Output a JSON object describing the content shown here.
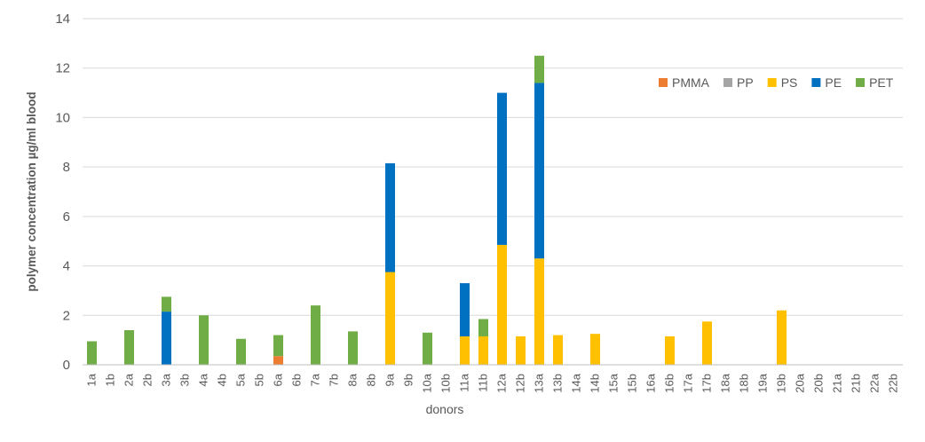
{
  "chart_data": {
    "type": "bar",
    "stacked": true,
    "xlabel": "donors",
    "ylabel": "polymer concentration µg/ml blood",
    "ylim": [
      0,
      14
    ],
    "yticks": [
      0,
      2,
      4,
      6,
      8,
      10,
      12,
      14
    ],
    "grid": true,
    "legend_position": "top-right",
    "categories": [
      "1a",
      "1b",
      "2a",
      "2b",
      "3a",
      "3b",
      "4a",
      "4b",
      "5a",
      "5b",
      "6a",
      "6b",
      "7a",
      "7b",
      "8a",
      "8b",
      "9a",
      "9b",
      "10a",
      "10b",
      "11a",
      "11b",
      "12a",
      "12b",
      "13a",
      "13b",
      "14a",
      "14b",
      "15a",
      "15b",
      "16a",
      "16b",
      "17a",
      "17b",
      "18a",
      "18b",
      "19a",
      "19b",
      "20a",
      "20b",
      "21a",
      "21b",
      "22a",
      "22b"
    ],
    "series": [
      {
        "name": "PMMA",
        "color": "#ED7D31",
        "values": [
          0,
          0,
          0,
          0,
          0,
          0,
          0,
          0,
          0,
          0,
          0.35,
          0,
          0,
          0,
          0,
          0,
          0,
          0,
          0,
          0,
          0,
          0,
          0,
          0,
          0,
          0,
          0,
          0,
          0,
          0,
          0,
          0,
          0,
          0,
          0,
          0,
          0,
          0,
          0,
          0,
          0,
          0,
          0,
          0
        ]
      },
      {
        "name": "PP",
        "color": "#A5A5A5",
        "values": [
          0,
          0,
          0,
          0,
          0,
          0,
          0,
          0,
          0,
          0,
          0,
          0,
          0,
          0,
          0,
          0,
          0,
          0,
          0,
          0,
          0,
          0,
          0,
          0,
          0,
          0,
          0,
          0,
          0,
          0,
          0,
          0,
          0,
          0,
          0,
          0,
          0,
          0,
          0,
          0,
          0,
          0,
          0,
          0
        ]
      },
      {
        "name": "PS",
        "color": "#FFC000",
        "values": [
          0,
          0,
          0,
          0,
          0,
          0,
          0,
          0,
          0,
          0,
          0,
          0,
          0,
          0,
          0,
          0,
          3.75,
          0,
          0,
          0,
          1.15,
          1.15,
          4.85,
          1.15,
          4.3,
          0,
          0,
          1.25,
          0,
          0,
          0,
          0,
          0,
          0,
          0,
          0,
          0,
          0,
          0,
          0,
          0,
          0,
          0,
          0
        ]
      },
      {
        "name": "PE",
        "color": "#0070C0",
        "values": [
          0,
          0,
          0,
          0,
          2.15,
          0,
          0,
          0,
          0,
          0,
          0,
          0,
          0,
          0,
          0,
          0,
          4.4,
          0,
          0,
          0,
          2.15,
          0,
          6.15,
          0,
          7.1,
          0,
          0,
          0,
          0,
          0,
          0,
          0,
          0,
          0,
          0,
          0,
          0,
          0,
          0,
          0,
          0,
          0,
          0,
          0
        ]
      },
      {
        "name": "PET",
        "color": "#70AD47",
        "values": [
          0.95,
          0,
          1.4,
          0,
          0.6,
          0,
          2.0,
          0,
          1.05,
          0,
          0.85,
          0,
          2.4,
          0,
          1.35,
          0,
          0,
          0,
          1.3,
          0,
          0,
          0.7,
          0,
          0,
          1.1,
          0,
          0,
          0,
          0,
          0,
          0,
          0,
          0,
          0,
          0,
          0,
          0,
          0,
          0,
          0,
          0,
          0,
          0,
          0
        ]
      }
    ],
    "extra_single_bars": [
      {
        "category": "13b",
        "series": "PS",
        "value": 1.2
      },
      {
        "category": "16b",
        "series": "PS",
        "value": 1.15
      },
      {
        "category": "17b",
        "series": "PS",
        "value": 1.75
      },
      {
        "category": "19b",
        "series": "PS",
        "value": 2.2
      }
    ]
  }
}
